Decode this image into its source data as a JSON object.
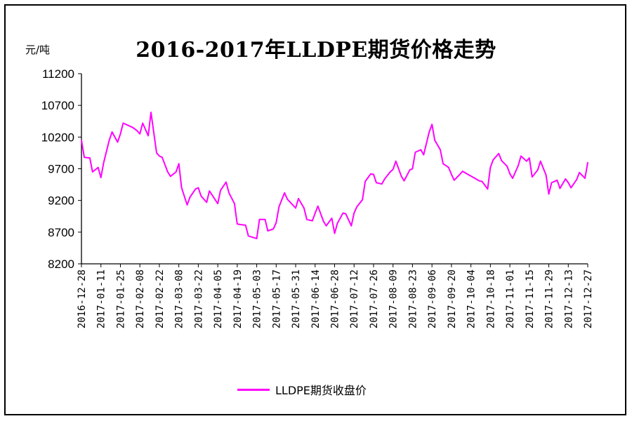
{
  "chart_data": {
    "type": "line",
    "title": "2016-2017年LLDPE期货价格走势",
    "ylabel": "元/吨",
    "ylim": [
      8200,
      11200
    ],
    "yticks": [
      8200,
      8700,
      9200,
      9700,
      10200,
      10700,
      11200
    ],
    "xticks": [
      "2016-12-28",
      "2017-01-11",
      "2017-01-25",
      "2017-02-08",
      "2017-02-22",
      "2017-03-08",
      "2017-03-22",
      "2017-04-05",
      "2017-04-19",
      "2017-05-03",
      "2017-05-17",
      "2017-05-31",
      "2017-06-14",
      "2017-06-28",
      "2017-07-12",
      "2017-07-26",
      "2017-08-09",
      "2017-08-23",
      "2017-09-06",
      "2017-09-20",
      "2017-10-04",
      "2017-10-18",
      "2017-11-01",
      "2017-11-15",
      "2017-11-29",
      "2017-12-13",
      "2017-12-27"
    ],
    "legend_position": "bottom",
    "grid": false,
    "series": [
      {
        "name": "LLDPE期货收盘价",
        "color": "#ff00ff",
        "x": [
          "2016-12-28",
          "2016-12-30",
          "2017-01-03",
          "2017-01-05",
          "2017-01-09",
          "2017-01-11",
          "2017-01-13",
          "2017-01-17",
          "2017-01-19",
          "2017-01-23",
          "2017-01-25",
          "2017-01-27",
          "2017-02-03",
          "2017-02-06",
          "2017-02-08",
          "2017-02-10",
          "2017-02-14",
          "2017-02-16",
          "2017-02-20",
          "2017-02-22",
          "2017-02-24",
          "2017-02-28",
          "2017-03-02",
          "2017-03-06",
          "2017-03-08",
          "2017-03-10",
          "2017-03-14",
          "2017-03-16",
          "2017-03-20",
          "2017-03-22",
          "2017-03-24",
          "2017-03-28",
          "2017-03-30",
          "2017-04-05",
          "2017-04-07",
          "2017-04-11",
          "2017-04-13",
          "2017-04-17",
          "2017-04-19",
          "2017-04-21",
          "2017-04-25",
          "2017-04-27",
          "2017-05-03",
          "2017-05-05",
          "2017-05-09",
          "2017-05-11",
          "2017-05-15",
          "2017-05-17",
          "2017-05-19",
          "2017-05-23",
          "2017-05-25",
          "2017-05-31",
          "2017-06-02",
          "2017-06-06",
          "2017-06-08",
          "2017-06-12",
          "2017-06-14",
          "2017-06-16",
          "2017-06-20",
          "2017-06-22",
          "2017-06-26",
          "2017-06-28",
          "2017-06-30",
          "2017-07-04",
          "2017-07-06",
          "2017-07-10",
          "2017-07-12",
          "2017-07-14",
          "2017-07-18",
          "2017-07-20",
          "2017-07-24",
          "2017-07-26",
          "2017-07-28",
          "2017-08-01",
          "2017-08-03",
          "2017-08-07",
          "2017-08-09",
          "2017-08-11",
          "2017-08-15",
          "2017-08-17",
          "2017-08-21",
          "2017-08-23",
          "2017-08-25",
          "2017-08-29",
          "2017-08-31",
          "2017-09-04",
          "2017-09-06",
          "2017-09-08",
          "2017-09-12",
          "2017-09-14",
          "2017-09-18",
          "2017-09-20",
          "2017-09-22",
          "2017-09-26",
          "2017-09-28",
          "2017-10-10",
          "2017-10-12",
          "2017-10-16",
          "2017-10-18",
          "2017-10-20",
          "2017-10-24",
          "2017-10-26",
          "2017-10-30",
          "2017-11-01",
          "2017-11-03",
          "2017-11-07",
          "2017-11-09",
          "2017-11-13",
          "2017-11-15",
          "2017-11-17",
          "2017-11-21",
          "2017-11-23",
          "2017-11-27",
          "2017-11-29",
          "2017-12-01",
          "2017-12-05",
          "2017-12-07",
          "2017-12-11",
          "2017-12-13",
          "2017-12-15",
          "2017-12-19",
          "2017-12-21",
          "2017-12-25",
          "2017-12-27"
        ],
        "values": [
          10150,
          9880,
          9870,
          9650,
          9720,
          9560,
          9800,
          10150,
          10280,
          10120,
          10250,
          10420,
          10350,
          10300,
          10250,
          10420,
          10220,
          10590,
          9950,
          9900,
          9880,
          9650,
          9580,
          9650,
          9780,
          9400,
          9130,
          9250,
          9380,
          9400,
          9270,
          9170,
          9350,
          9150,
          9360,
          9490,
          9320,
          9150,
          8830,
          8820,
          8810,
          8640,
          8600,
          8900,
          8900,
          8720,
          8750,
          8850,
          9100,
          9320,
          9220,
          9080,
          9230,
          9080,
          8900,
          8880,
          9000,
          9110,
          8870,
          8800,
          8920,
          8680,
          8840,
          9000,
          8990,
          8800,
          9000,
          9100,
          9210,
          9500,
          9620,
          9610,
          9480,
          9460,
          9540,
          9650,
          9690,
          9820,
          9580,
          9510,
          9680,
          9700,
          9960,
          10000,
          9920,
          10280,
          10400,
          10150,
          10000,
          9780,
          9720,
          9610,
          9520,
          9610,
          9660,
          9510,
          9500,
          9380,
          9720,
          9840,
          9940,
          9830,
          9740,
          9620,
          9550,
          9750,
          9900,
          9820,
          9870,
          9570,
          9680,
          9820,
          9600,
          9300,
          9480,
          9520,
          9390,
          9540,
          9480,
          9400,
          9530,
          9640,
          9550,
          9800
        ]
      }
    ]
  }
}
